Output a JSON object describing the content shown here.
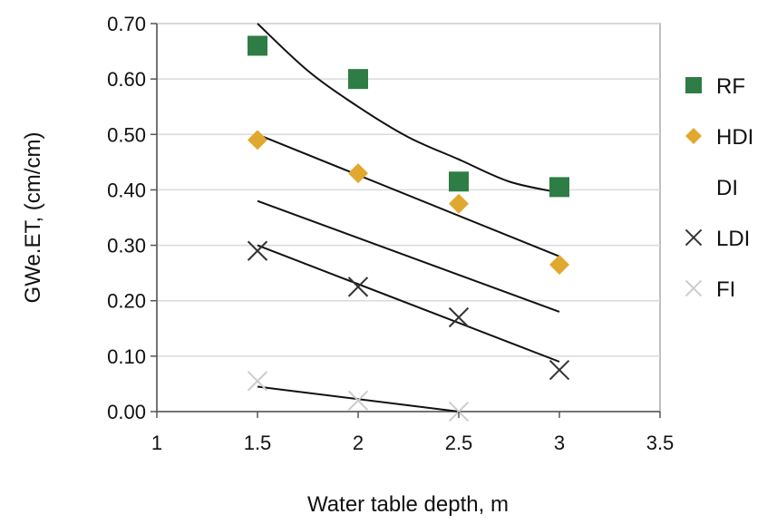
{
  "chart_data": {
    "type": "scatter",
    "xlabel": "Water table depth, m",
    "ylabel": "GWe.ET,  (cm/cm)",
    "xlim": [
      1,
      3.5
    ],
    "ylim": [
      0,
      0.7
    ],
    "x_ticks": [
      "1",
      "1.5",
      "2",
      "2.5",
      "3",
      "3.5"
    ],
    "y_ticks": [
      "0.00",
      "0.10",
      "0.20",
      "0.30",
      "0.40",
      "0.50",
      "0.60",
      "0.70"
    ],
    "grid": "horizontal",
    "legend_position": "right",
    "series": [
      {
        "name": "RF",
        "marker": "square",
        "color": "#2e7d46",
        "x": [
          1.5,
          2,
          2.5,
          3
        ],
        "y": [
          0.66,
          0.6,
          0.415,
          0.405
        ]
      },
      {
        "name": "HDI",
        "marker": "diamond",
        "color": "#e0a82e",
        "x": [
          1.5,
          2,
          2.5,
          3
        ],
        "y": [
          0.49,
          0.43,
          0.375,
          0.265
        ]
      },
      {
        "name": "DI",
        "marker": "none",
        "color": "#dddddd",
        "x": [
          1.5,
          2,
          2.5,
          3
        ],
        "y": [
          0.38,
          0.315,
          0.25,
          0.18
        ]
      },
      {
        "name": "LDI",
        "marker": "x",
        "color": "#333333",
        "x": [
          1.5,
          2,
          2.5,
          3
        ],
        "y": [
          0.29,
          0.225,
          0.17,
          0.075
        ]
      },
      {
        "name": "FI",
        "marker": "x",
        "color": "#cccccc",
        "x": [
          1.5,
          2,
          2.5
        ],
        "y": [
          0.055,
          0.02,
          0.0
        ]
      }
    ],
    "trendlines": [
      {
        "series": "RF",
        "kind": "curve",
        "x": [
          1.5,
          1.75,
          2,
          2.25,
          2.5,
          2.75,
          3
        ],
        "y": [
          0.7,
          0.615,
          0.55,
          0.495,
          0.455,
          0.415,
          0.395
        ]
      },
      {
        "series": "HDI",
        "kind": "linear",
        "x": [
          1.5,
          3
        ],
        "y": [
          0.5,
          0.28
        ]
      },
      {
        "series": "DI",
        "kind": "linear",
        "x": [
          1.5,
          3
        ],
        "y": [
          0.38,
          0.18
        ]
      },
      {
        "series": "LDI",
        "kind": "linear",
        "x": [
          1.5,
          3
        ],
        "y": [
          0.3,
          0.09
        ]
      },
      {
        "series": "FI",
        "kind": "linear",
        "x": [
          1.5,
          2.5
        ],
        "y": [
          0.045,
          0.0
        ]
      }
    ]
  }
}
